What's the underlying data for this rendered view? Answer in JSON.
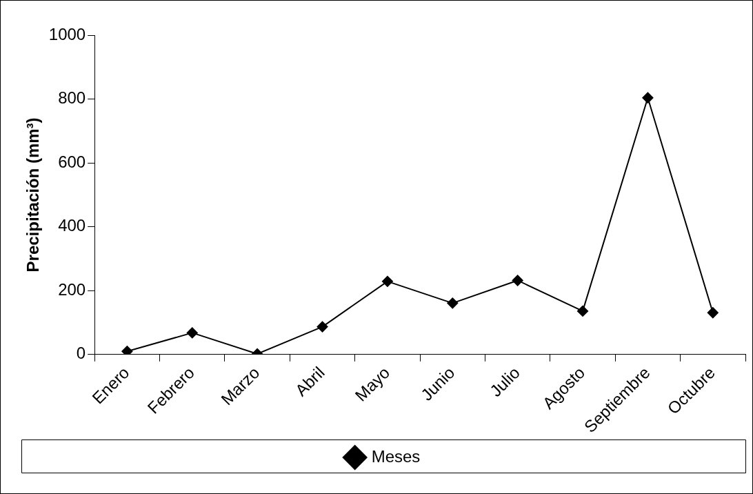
{
  "chart_data": {
    "type": "line",
    "ylabel": "Precipitación (mm³)",
    "categories": [
      "Enero",
      "Febrero",
      "Marzo",
      "Abril",
      "Mayo",
      "Junio",
      "Julio",
      "Agosto",
      "Septiembre",
      "Octubre"
    ],
    "series": [
      {
        "name": "Meses",
        "color": "#000000",
        "values": [
          10,
          68,
          2,
          87,
          229,
          161,
          232,
          136,
          804,
          131
        ]
      }
    ],
    "ylim": [
      0,
      1000
    ],
    "yticks": [
      0,
      200,
      400,
      600,
      800,
      1000
    ],
    "grid": false,
    "legend": "bottom",
    "marker": "diamond",
    "line_style": "solid"
  }
}
